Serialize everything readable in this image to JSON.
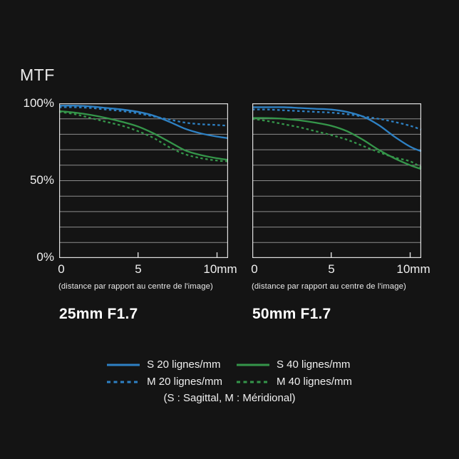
{
  "page": {
    "title": "MTF"
  },
  "colors": {
    "blue": "#2e81c4",
    "green": "#35964a",
    "grid": "#8c8c8c",
    "axis": "#e0e0e0",
    "background": "#141414",
    "text": "#f2f2f2"
  },
  "y_axis": {
    "ticks": [
      "100%",
      "50%",
      "0%"
    ]
  },
  "x_axis": {
    "ticks": [
      "0",
      "5",
      "10mm"
    ],
    "caption": "(distance par rapport au centre de l'image)"
  },
  "legend": {
    "items": [
      {
        "label": "S 20 lignes/mm",
        "color": "#2e81c4",
        "dash": false
      },
      {
        "label": "S 40 lignes/mm",
        "color": "#35964a",
        "dash": false
      },
      {
        "label": "M 20 lignes/mm",
        "color": "#2e81c4",
        "dash": true
      },
      {
        "label": "M 40 lignes/mm",
        "color": "#35964a",
        "dash": true
      }
    ],
    "note": "(S : Sagittal, M : Méridional)"
  },
  "chart_data": [
    {
      "type": "line",
      "title": "25mm F1.7",
      "xlabel": "(distance par rapport au centre de l'image)",
      "ylabel": "MTF (%)",
      "xlim": [
        0,
        10.7
      ],
      "ylim": [
        0,
        100
      ],
      "grid": "horizontal every 10%",
      "x_ticks_mm": [
        0,
        5,
        10
      ],
      "x": [
        0,
        1,
        2,
        3,
        4,
        5,
        6,
        7,
        8,
        9,
        10,
        10.7
      ],
      "series": [
        {
          "name": "S 20 lignes/mm",
          "color": "#2e81c4",
          "dash": false,
          "values": [
            98.5,
            98.5,
            98,
            97,
            96,
            94.5,
            92,
            88,
            83.5,
            80.5,
            78.5,
            77.5
          ]
        },
        {
          "name": "M 20 lignes/mm",
          "color": "#2e81c4",
          "dash": true,
          "values": [
            97.5,
            97.5,
            97,
            96,
            95,
            93.5,
            91.5,
            89.5,
            87.5,
            86.5,
            86,
            85.5
          ]
        },
        {
          "name": "S 40 lignes/mm",
          "color": "#35964a",
          "dash": false,
          "values": [
            95,
            94,
            92.5,
            90.5,
            88,
            85,
            80.5,
            75,
            69.5,
            66.5,
            64.5,
            63.5
          ]
        },
        {
          "name": "M 40 lignes/mm",
          "color": "#35964a",
          "dash": true,
          "values": [
            94.5,
            93,
            90.5,
            88,
            85.5,
            82,
            77.5,
            71.5,
            67,
            64.5,
            63,
            62.5
          ]
        }
      ]
    },
    {
      "type": "line",
      "title": "50mm F1.7",
      "xlabel": "(distance par rapport au centre de l'image)",
      "ylabel": "MTF (%)",
      "xlim": [
        0,
        10.7
      ],
      "ylim": [
        0,
        100
      ],
      "grid": "horizontal every 10%",
      "x_ticks_mm": [
        0,
        5,
        10
      ],
      "x": [
        0,
        1,
        2,
        3,
        4,
        5,
        6,
        7,
        8,
        9,
        10,
        10.7
      ],
      "series": [
        {
          "name": "S 20 lignes/mm",
          "color": "#2e81c4",
          "dash": false,
          "values": [
            97.5,
            97.5,
            97.5,
            97,
            96.5,
            96,
            94.5,
            91.5,
            86,
            78.5,
            72,
            69
          ]
        },
        {
          "name": "M 20 lignes/mm",
          "color": "#2e81c4",
          "dash": true,
          "values": [
            96,
            96,
            95.5,
            95,
            94.5,
            94,
            93,
            91.5,
            90,
            88,
            85.5,
            83
          ]
        },
        {
          "name": "S 40 lignes/mm",
          "color": "#35964a",
          "dash": false,
          "values": [
            90.5,
            90.5,
            90,
            89,
            87.5,
            85.5,
            82,
            76.5,
            70,
            64.5,
            60,
            57.5
          ]
        },
        {
          "name": "M 40 lignes/mm",
          "color": "#35964a",
          "dash": true,
          "values": [
            90,
            88.5,
            86.5,
            84.5,
            82,
            79.5,
            76.5,
            72.5,
            68.5,
            65,
            62.5,
            58.5
          ]
        }
      ]
    }
  ]
}
